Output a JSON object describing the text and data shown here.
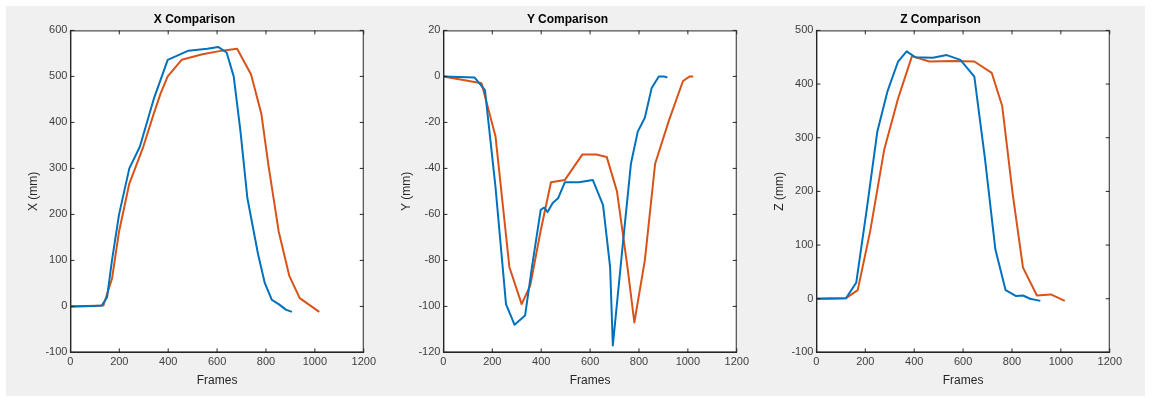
{
  "chart_data": [
    {
      "type": "line",
      "title": "X Comparison",
      "xlabel": "Frames",
      "ylabel": "X (mm)",
      "xlim": [
        0,
        1200
      ],
      "xticks": [
        0,
        200,
        400,
        600,
        800,
        1000,
        1200
      ],
      "ylim": [
        -100,
        600
      ],
      "yticks": [
        -100,
        0,
        100,
        200,
        300,
        400,
        500,
        600
      ],
      "grid": false,
      "marker": "none",
      "series": [
        {
          "color": "#0072bd",
          "x": [
            0,
            100,
            128,
            150,
            170,
            199,
            241,
            284,
            341,
            398,
            483,
            560,
            604,
            639,
            668,
            696,
            724,
            767,
            795,
            824,
            852,
            881,
            906
          ],
          "values": [
            0,
            1,
            2,
            20,
            100,
            200,
            300,
            347,
            451,
            536,
            556,
            560,
            564,
            552,
            500,
            379,
            235,
            115,
            51,
            14,
            5,
            -7,
            -12
          ]
        },
        {
          "color": "#d95319",
          "x": [
            0,
            135,
            170,
            199,
            241,
            298,
            341,
            369,
            398,
            455,
            540,
            620,
            682,
            739,
            781,
            810,
            852,
            895,
            938,
            1018
          ],
          "values": [
            0,
            2,
            60,
            163,
            267,
            347,
            419,
            463,
            500,
            536,
            548,
            556,
            560,
            504,
            419,
            307,
            163,
            67,
            18,
            -12
          ]
        }
      ]
    },
    {
      "type": "line",
      "title": "Y Comparison",
      "xlabel": "Frames",
      "ylabel": "Y (mm)",
      "xlim": [
        0,
        1200
      ],
      "xticks": [
        0,
        200,
        400,
        600,
        800,
        1000,
        1200
      ],
      "ylim": [
        -120,
        20
      ],
      "yticks": [
        -120,
        -100,
        -80,
        -60,
        -40,
        -20,
        0,
        20
      ],
      "grid": false,
      "marker": "none",
      "series": [
        {
          "color": "#0072bd",
          "x": [
            0,
            128,
            170,
            213,
            256,
            291,
            334,
            362,
            398,
            412,
            426,
            447,
            469,
            497,
            554,
            611,
            653,
            682,
            693,
            732,
            767,
            795,
            824,
            852,
            881,
            902,
            916
          ],
          "values": [
            0,
            -0.5,
            -6,
            -48,
            -99,
            -108,
            -104,
            -83,
            -58,
            -57,
            -59,
            -55,
            -53,
            -46,
            -46,
            -45,
            -56,
            -83,
            -117,
            -75,
            -38,
            -24,
            -18,
            -5,
            0,
            0,
            -0.5
          ]
        },
        {
          "color": "#d95319",
          "x": [
            0,
            156,
            213,
            270,
            320,
            355,
            398,
            440,
            497,
            568,
            625,
            668,
            710,
            753,
            781,
            824,
            866,
            923,
            980,
            1008,
            1022
          ],
          "values": [
            0,
            -3,
            -26,
            -83,
            -99,
            -91,
            -67,
            -46,
            -45,
            -34,
            -34,
            -35,
            -50,
            -83,
            -107,
            -80,
            -38,
            -19,
            -2,
            0,
            0
          ]
        }
      ]
    },
    {
      "type": "line",
      "title": "Z Comparison",
      "xlabel": "Frames",
      "ylabel": "Z (mm)",
      "xlim": [
        0,
        1200
      ],
      "xticks": [
        0,
        200,
        400,
        600,
        800,
        1000,
        1200
      ],
      "ylim": [
        -100,
        500
      ],
      "yticks": [
        -100,
        0,
        100,
        200,
        300,
        400,
        500
      ],
      "grid": false,
      "marker": "none",
      "series": [
        {
          "color": "#0072bd",
          "x": [
            0,
            121,
            163,
            206,
            249,
            291,
            334,
            369,
            405,
            476,
            533,
            589,
            646,
            689,
            732,
            774,
            817,
            845,
            874,
            916
          ],
          "values": [
            0,
            1,
            30,
            167,
            311,
            387,
            442,
            461,
            450,
            449,
            454,
            445,
            414,
            263,
            92,
            16,
            5,
            6,
            0,
            -4
          ]
        },
        {
          "color": "#d95319",
          "x": [
            0,
            121,
            169,
            220,
            277,
            334,
            391,
            462,
            561,
            646,
            717,
            760,
            803,
            845,
            902,
            959,
            1016
          ],
          "values": [
            0,
            1,
            16,
            126,
            277,
            373,
            452,
            442,
            443,
            442,
            421,
            359,
            195,
            58,
            6,
            8,
            -4
          ]
        }
      ]
    }
  ]
}
